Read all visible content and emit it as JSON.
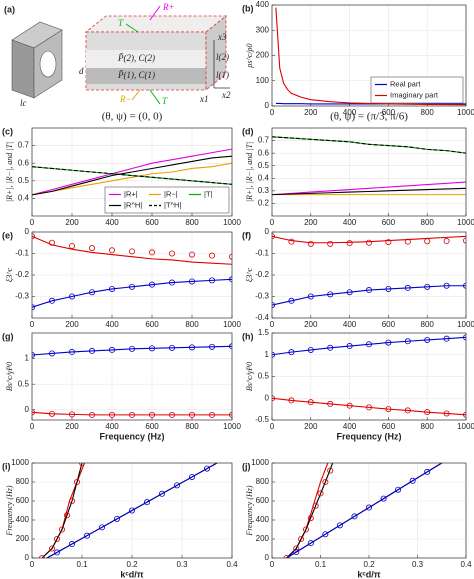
{
  "diagram": {
    "label": "(a)",
    "texts": [
      "T",
      "R+",
      "x3",
      "l(2)",
      "l(1)",
      "x2",
      "x1",
      "d",
      "lc",
      "R−",
      "T",
      "P̃(2), C(2)",
      "P̃(1), C(1)"
    ],
    "caption_left": "(θ, ψ) = (0, 0)",
    "caption_right": "(θ, ψ) = (π/3, π/6)"
  },
  "chart_data": [
    {
      "type": "line",
      "label": "(b)",
      "ylabel": "ρs^c/ρ0",
      "xlim": [
        0,
        1000
      ],
      "xticks": [
        0,
        200,
        400,
        600,
        800,
        1000
      ],
      "ylim": [
        0,
        400
      ],
      "yticks": [
        0,
        100,
        200,
        300,
        400
      ],
      "legend": "lower right",
      "series": [
        {
          "name": "Real part",
          "color": "#0000cc",
          "linestyle": "-",
          "x": [
            20,
            40,
            60,
            80,
            100,
            150,
            200,
            300,
            400,
            600,
            800,
            1000
          ],
          "values": [
            10,
            10,
            9,
            9,
            9,
            9,
            8,
            8,
            8,
            8,
            8,
            8
          ]
        },
        {
          "name": "Imaginary part",
          "color": "#dd0000",
          "linestyle": "-",
          "x": [
            20,
            40,
            60,
            80,
            100,
            150,
            200,
            300,
            400,
            600,
            800,
            1000
          ],
          "values": [
            390,
            150,
            90,
            65,
            50,
            35,
            25,
            17,
            12,
            8,
            6,
            5
          ]
        }
      ]
    },
    {
      "type": "line",
      "label": "(c)",
      "ylabel": "|R+|, |R−|, and |T|",
      "xlim": [
        0,
        1000
      ],
      "xticks": [
        0,
        200,
        400,
        600,
        800,
        1000
      ],
      "ylim": [
        0.3,
        0.8
      ],
      "yticks": [
        0.4,
        0.5,
        0.6,
        0.7
      ],
      "legend": "lower right",
      "x": [
        0,
        100,
        200,
        300,
        400,
        500,
        600,
        700,
        800,
        900,
        1000
      ],
      "series": [
        {
          "name": "|R+|",
          "color": "#e000e0",
          "linestyle": "-",
          "values": [
            0.42,
            0.45,
            0.48,
            0.51,
            0.54,
            0.57,
            0.6,
            0.62,
            0.64,
            0.66,
            0.68
          ]
        },
        {
          "name": "|R−|",
          "color": "#e8a000",
          "linestyle": "-",
          "values": [
            0.42,
            0.44,
            0.46,
            0.48,
            0.5,
            0.52,
            0.54,
            0.55,
            0.57,
            0.58,
            0.6
          ]
        },
        {
          "name": "|T|",
          "color": "#00b000",
          "linestyle": "-",
          "values": [
            0.58,
            0.57,
            0.56,
            0.55,
            0.54,
            0.53,
            0.52,
            0.51,
            0.5,
            0.49,
            0.48
          ]
        },
        {
          "name": "|R^H|",
          "color": "#000000",
          "linestyle": "-",
          "values": [
            0.42,
            0.44,
            0.47,
            0.5,
            0.53,
            0.55,
            0.57,
            0.59,
            0.61,
            0.63,
            0.64
          ]
        },
        {
          "name": "|T^H|",
          "color": "#000000",
          "linestyle": "--",
          "values": [
            0.58,
            0.57,
            0.56,
            0.55,
            0.54,
            0.53,
            0.52,
            0.51,
            0.5,
            0.49,
            0.48
          ]
        }
      ]
    },
    {
      "type": "line",
      "label": "(d)",
      "ylabel": "|R+|, |R−|, and |T|",
      "xlim": [
        0,
        1000
      ],
      "xticks": [
        0,
        200,
        400,
        600,
        800,
        1000
      ],
      "ylim": [
        0.1,
        0.8
      ],
      "yticks": [
        0.2,
        0.3,
        0.4,
        0.5,
        0.6,
        0.7
      ],
      "x": [
        0,
        100,
        200,
        300,
        400,
        500,
        600,
        700,
        800,
        900,
        1000
      ],
      "series": [
        {
          "color": "#e000e0",
          "linestyle": "-",
          "values": [
            0.27,
            0.28,
            0.29,
            0.3,
            0.31,
            0.32,
            0.33,
            0.34,
            0.35,
            0.36,
            0.37
          ]
        },
        {
          "color": "#e8a000",
          "linestyle": "-",
          "values": [
            0.27,
            0.27,
            0.27,
            0.27,
            0.27,
            0.27,
            0.27,
            0.27,
            0.27,
            0.27,
            0.27
          ]
        },
        {
          "color": "#00b000",
          "linestyle": "-",
          "values": [
            0.73,
            0.72,
            0.71,
            0.7,
            0.69,
            0.67,
            0.66,
            0.65,
            0.63,
            0.62,
            0.6
          ]
        },
        {
          "color": "#000000",
          "linestyle": "-",
          "values": [
            0.27,
            0.275,
            0.28,
            0.285,
            0.29,
            0.295,
            0.3,
            0.305,
            0.31,
            0.315,
            0.32
          ]
        },
        {
          "color": "#000000",
          "linestyle": "--",
          "values": [
            0.73,
            0.72,
            0.71,
            0.7,
            0.69,
            0.67,
            0.66,
            0.65,
            0.63,
            0.62,
            0.6
          ]
        }
      ]
    },
    {
      "type": "line",
      "label": "(e)",
      "ylabel": "ξ3^c",
      "xlim": [
        0,
        1000
      ],
      "xticks": [
        0,
        200,
        400,
        600,
        800,
        1000
      ],
      "ylim": [
        -0.4,
        0
      ],
      "yticks": [
        -0.3,
        -0.2,
        -0.1,
        0
      ],
      "x": [
        0,
        100,
        200,
        300,
        400,
        500,
        600,
        700,
        800,
        900,
        1000
      ],
      "series": [
        {
          "color": "#dd0000",
          "linestyle": "-",
          "values": [
            -0.02,
            -0.06,
            -0.08,
            -0.095,
            -0.105,
            -0.115,
            -0.125,
            -0.13,
            -0.14,
            -0.145,
            -0.15
          ]
        },
        {
          "color": "#dd0000",
          "marker": "o",
          "values": [
            -0.02,
            -0.05,
            -0.065,
            -0.075,
            -0.085,
            -0.09,
            -0.095,
            -0.1,
            -0.105,
            -0.11,
            -0.115
          ]
        },
        {
          "color": "#0000cc",
          "linestyle": "-",
          "values": [
            -0.35,
            -0.32,
            -0.3,
            -0.28,
            -0.265,
            -0.255,
            -0.245,
            -0.235,
            -0.23,
            -0.225,
            -0.22
          ]
        },
        {
          "color": "#0000cc",
          "marker": "o",
          "values": [
            -0.35,
            -0.32,
            -0.3,
            -0.28,
            -0.265,
            -0.255,
            -0.245,
            -0.235,
            -0.23,
            -0.225,
            -0.22
          ]
        }
      ]
    },
    {
      "type": "line",
      "label": "(f)",
      "ylabel": "ξ3^c",
      "xlim": [
        0,
        1000
      ],
      "xticks": [
        0,
        200,
        400,
        600,
        800,
        1000
      ],
      "ylim": [
        -0.4,
        0
      ],
      "yticks": [
        -0.4,
        -0.3,
        -0.2,
        -0.1,
        0
      ],
      "x": [
        0,
        100,
        200,
        300,
        400,
        500,
        600,
        700,
        800,
        900,
        1000
      ],
      "series": [
        {
          "color": "#dd0000",
          "linestyle": "-",
          "values": [
            -0.02,
            -0.04,
            -0.05,
            -0.05,
            -0.048,
            -0.045,
            -0.04,
            -0.035,
            -0.03,
            -0.025,
            -0.02
          ]
        },
        {
          "color": "#dd0000",
          "marker": "o",
          "values": [
            -0.02,
            -0.045,
            -0.055,
            -0.055,
            -0.052,
            -0.05,
            -0.047,
            -0.045,
            -0.043,
            -0.042,
            -0.04
          ]
        },
        {
          "color": "#0000cc",
          "linestyle": "-",
          "values": [
            -0.34,
            -0.32,
            -0.3,
            -0.29,
            -0.28,
            -0.27,
            -0.265,
            -0.26,
            -0.255,
            -0.25,
            -0.25
          ]
        },
        {
          "color": "#0000cc",
          "marker": "o",
          "values": [
            -0.34,
            -0.32,
            -0.3,
            -0.29,
            -0.28,
            -0.27,
            -0.265,
            -0.26,
            -0.255,
            -0.25,
            -0.25
          ]
        }
      ]
    },
    {
      "type": "line",
      "label": "(g)",
      "ylabel": "Bs^c/γP0",
      "xlabel": "Frequency (Hz)",
      "xlim": [
        0,
        1000
      ],
      "xticks": [
        0,
        200,
        400,
        600,
        800,
        1000
      ],
      "ylim": [
        -0.2,
        1.5
      ],
      "yticks": [
        0,
        0.5,
        1
      ],
      "x": [
        0,
        100,
        200,
        300,
        400,
        500,
        600,
        700,
        800,
        900,
        1000
      ],
      "series": [
        {
          "color": "#0000cc",
          "linestyle": "-",
          "values": [
            1.07,
            1.1,
            1.13,
            1.15,
            1.17,
            1.19,
            1.2,
            1.21,
            1.22,
            1.23,
            1.24
          ]
        },
        {
          "color": "#0000cc",
          "marker": "o",
          "values": [
            1.07,
            1.1,
            1.13,
            1.15,
            1.17,
            1.19,
            1.2,
            1.21,
            1.22,
            1.23,
            1.24
          ]
        },
        {
          "color": "#dd0000",
          "linestyle": "-",
          "values": [
            -0.05,
            -0.08,
            -0.09,
            -0.1,
            -0.1,
            -0.1,
            -0.1,
            -0.1,
            -0.1,
            -0.1,
            -0.1
          ]
        },
        {
          "color": "#dd0000",
          "marker": "o",
          "values": [
            -0.05,
            -0.08,
            -0.09,
            -0.1,
            -0.1,
            -0.1,
            -0.1,
            -0.1,
            -0.1,
            -0.1,
            -0.1
          ]
        }
      ]
    },
    {
      "type": "line",
      "label": "(h)",
      "ylabel": "Bs^c/γP0",
      "xlabel": "Frequency (Hz)",
      "xlim": [
        0,
        1000
      ],
      "xticks": [
        0,
        200,
        400,
        600,
        800,
        1000
      ],
      "ylim": [
        -0.5,
        1.5
      ],
      "yticks": [
        -0.5,
        0,
        0.5,
        1,
        1.5
      ],
      "x": [
        0,
        100,
        200,
        300,
        400,
        500,
        600,
        700,
        800,
        900,
        1000
      ],
      "series": [
        {
          "color": "#0000cc",
          "linestyle": "-",
          "values": [
            1.0,
            1.06,
            1.11,
            1.16,
            1.2,
            1.24,
            1.28,
            1.31,
            1.34,
            1.37,
            1.4
          ]
        },
        {
          "color": "#0000cc",
          "marker": "o",
          "values": [
            1.0,
            1.06,
            1.11,
            1.16,
            1.2,
            1.24,
            1.28,
            1.31,
            1.34,
            1.37,
            1.4
          ]
        },
        {
          "color": "#dd0000",
          "linestyle": "-",
          "values": [
            0,
            -0.05,
            -0.09,
            -0.13,
            -0.17,
            -0.21,
            -0.25,
            -0.28,
            -0.32,
            -0.35,
            -0.38
          ]
        },
        {
          "color": "#dd0000",
          "marker": "o",
          "values": [
            0,
            -0.05,
            -0.09,
            -0.13,
            -0.17,
            -0.21,
            -0.25,
            -0.28,
            -0.32,
            -0.35,
            -0.38
          ]
        }
      ]
    },
    {
      "type": "line",
      "label": "(i)",
      "ylabel": "Frequency (Hz)",
      "xlabel": "kᶜd/π",
      "xlim": [
        0,
        0.4
      ],
      "xticks": [
        0,
        0.1,
        0.2,
        0.3,
        0.4
      ],
      "ylim": [
        0,
        1000
      ],
      "yticks": [
        0,
        200,
        400,
        600,
        800,
        1000
      ],
      "series": [
        {
          "color": "#dd0000",
          "linestyle": "-",
          "x": [
            0.02,
            0.04,
            0.06,
            0.075,
            0.09,
            0.105
          ],
          "values": [
            0,
            100,
            300,
            600,
            800,
            1000
          ]
        },
        {
          "color": "#000000",
          "linestyle": "-",
          "x": [
            0.02,
            0.04,
            0.06,
            0.08,
            0.09,
            0.1
          ],
          "values": [
            0,
            100,
            300,
            600,
            800,
            1000
          ]
        },
        {
          "color": "#dd0000",
          "marker": "o",
          "x": [
            0.02,
            0.04,
            0.05,
            0.06,
            0.07,
            0.08,
            0.09,
            0.1
          ],
          "values": [
            0,
            100,
            200,
            300,
            450,
            600,
            800,
            1000
          ]
        },
        {
          "color": "#000000",
          "linestyle": "-",
          "x": [
            0.03,
            0.1,
            0.2,
            0.3,
            0.37
          ],
          "values": [
            0,
            206,
            500,
            794,
            1000
          ]
        },
        {
          "color": "#0000cc",
          "linestyle": "-",
          "x": [
            0.03,
            0.1,
            0.2,
            0.3,
            0.37
          ],
          "values": [
            0,
            206,
            500,
            794,
            1000
          ]
        },
        {
          "color": "#0000cc",
          "marker": "o",
          "x": [
            0.05,
            0.08,
            0.11,
            0.14,
            0.17,
            0.2,
            0.23,
            0.26,
            0.29,
            0.32,
            0.35
          ],
          "values": [
            59,
            147,
            235,
            323,
            412,
            500,
            588,
            676,
            765,
            853,
            941
          ]
        }
      ]
    },
    {
      "type": "line",
      "label": "(j)",
      "ylabel": "Frequency (Hz)",
      "xlabel": "kᶜd/π",
      "xlim": [
        0,
        0.4
      ],
      "xticks": [
        0,
        0.1,
        0.2,
        0.3,
        0.4
      ],
      "ylim": [
        0,
        1000
      ],
      "yticks": [
        0,
        200,
        400,
        600,
        800,
        1000
      ],
      "series": [
        {
          "color": "#dd0000",
          "linestyle": "-",
          "x": [
            0.03,
            0.05,
            0.07,
            0.085,
            0.1,
            0.115
          ],
          "values": [
            0,
            100,
            300,
            550,
            800,
            1000
          ]
        },
        {
          "color": "#000000",
          "linestyle": "-",
          "x": [
            0.03,
            0.05,
            0.07,
            0.09,
            0.11,
            0.125
          ],
          "values": [
            0,
            100,
            300,
            550,
            800,
            1000
          ]
        },
        {
          "color": "#dd0000",
          "marker": "o",
          "x": [
            0.03,
            0.05,
            0.06,
            0.07,
            0.08,
            0.09,
            0.1,
            0.11,
            0.12
          ],
          "values": [
            0,
            100,
            200,
            300,
            420,
            550,
            680,
            800,
            920
          ]
        },
        {
          "color": "#000000",
          "linestyle": "-",
          "x": [
            0.03,
            0.1,
            0.2,
            0.3,
            0.35
          ],
          "values": [
            0,
            219,
            531,
            844,
            1000
          ]
        },
        {
          "color": "#0000cc",
          "linestyle": "-",
          "x": [
            0.03,
            0.1,
            0.2,
            0.3,
            0.35
          ],
          "values": [
            0,
            219,
            531,
            844,
            1000
          ]
        },
        {
          "color": "#0000cc",
          "marker": "o",
          "x": [
            0.05,
            0.08,
            0.11,
            0.14,
            0.17,
            0.2,
            0.23,
            0.26,
            0.29,
            0.32
          ],
          "values": [
            63,
            156,
            250,
            344,
            438,
            531,
            625,
            719,
            813,
            906
          ]
        }
      ]
    }
  ]
}
